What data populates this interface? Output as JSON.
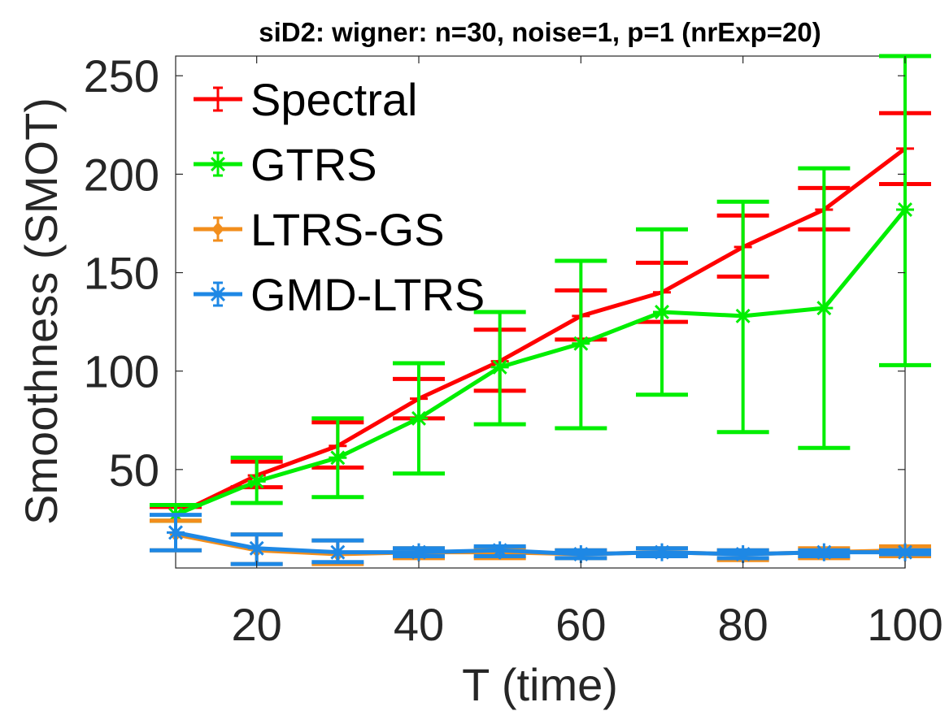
{
  "chart_data": {
    "type": "line",
    "title": "siD2: wigner: n=30, noise=1, p=1 (nrExp=20)",
    "xlabel": "T (time)",
    "ylabel": "Smoothness (SMOT)",
    "xlim": [
      10,
      100
    ],
    "ylim": [
      0,
      260
    ],
    "xticks": [
      20,
      40,
      60,
      80,
      100
    ],
    "yticks": [
      50,
      100,
      150,
      200,
      250
    ],
    "x": [
      10,
      20,
      30,
      40,
      50,
      60,
      70,
      80,
      90,
      100
    ],
    "legend_position": "top-left",
    "series": [
      {
        "name": "Spectral",
        "color": "#ff0000",
        "marker": "plus",
        "values": [
          27,
          47,
          62,
          86,
          105,
          128,
          140,
          163,
          182,
          213
        ],
        "lower": [
          24,
          41,
          51,
          76,
          90,
          116,
          125,
          148,
          172,
          195
        ],
        "upper": [
          31,
          54,
          74,
          96,
          121,
          141,
          155,
          179,
          193,
          231
        ]
      },
      {
        "name": "GTRS",
        "color": "#00ee00",
        "marker": "asterisk",
        "values": [
          27,
          44,
          56,
          76,
          102,
          114,
          130,
          128,
          132,
          182
        ],
        "lower": [
          24,
          33,
          36,
          48,
          73,
          71,
          88,
          69,
          61,
          103
        ],
        "upper": [
          32,
          56,
          76,
          104,
          130,
          156,
          172,
          186,
          203,
          260
        ]
      },
      {
        "name": "LTRS-GS",
        "color": "#f28e1c",
        "marker": "diamond",
        "values": [
          17,
          9,
          7,
          8,
          8,
          7,
          8,
          7,
          8,
          9
        ],
        "lower": [
          9,
          2,
          2,
          5,
          5,
          5,
          6,
          4,
          5,
          6
        ],
        "upper": [
          24,
          17,
          14,
          10,
          10,
          9,
          10,
          9,
          10,
          11
        ]
      },
      {
        "name": "GMD-LTRS",
        "color": "#1e88e5",
        "marker": "asterisk",
        "values": [
          18,
          10,
          8,
          8,
          9,
          7,
          8,
          7,
          8,
          8
        ],
        "lower": [
          9,
          2,
          3,
          6,
          6,
          5,
          6,
          5,
          6,
          7
        ],
        "upper": [
          27,
          17,
          14,
          10,
          11,
          9,
          10,
          9,
          9,
          9
        ]
      }
    ]
  }
}
